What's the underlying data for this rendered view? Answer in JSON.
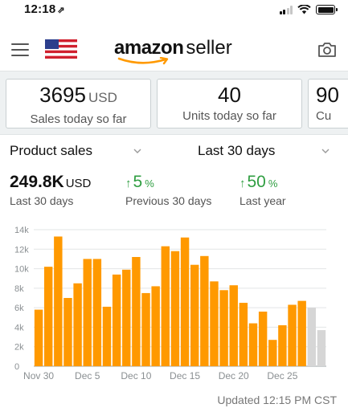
{
  "status_bar": {
    "time": "12:18",
    "location_glyph": "⇗"
  },
  "header": {
    "logo_word1": "amazon",
    "logo_word2": "seller",
    "flag": "us-flag-icon"
  },
  "cards": [
    {
      "value": "3695",
      "unit": "USD",
      "label": "Sales today so far"
    },
    {
      "value": "40",
      "unit": "",
      "label": "Units today so far"
    },
    {
      "value": "90",
      "unit": "",
      "label": "Cu"
    }
  ],
  "filters": {
    "metric": "Product sales",
    "range": "Last 30 days"
  },
  "stats": {
    "total": {
      "value": "249.8K",
      "unit": "USD",
      "label": "Last 30 days"
    },
    "previous": {
      "value": "5",
      "unit": "%",
      "label": "Previous 30 days"
    },
    "last_year": {
      "value": "50",
      "unit": "%",
      "label": "Last year"
    }
  },
  "colors": {
    "bar": "#ff9900",
    "bar_pending": "#d6d6d6",
    "positive": "#2f9e41",
    "card_bg": "#eef1f2"
  },
  "chart_data": {
    "type": "bar",
    "ylim": [
      0,
      14000
    ],
    "yticks": [
      "0",
      "2k",
      "4k",
      "6k",
      "8k",
      "10k",
      "12k",
      "14k"
    ],
    "xticks": [
      {
        "label": "Nov 30",
        "index": 0
      },
      {
        "label": "Dec 5",
        "index": 5
      },
      {
        "label": "Dec 10",
        "index": 10
      },
      {
        "label": "Dec 15",
        "index": 15
      },
      {
        "label": "Dec 20",
        "index": 20
      },
      {
        "label": "Dec 25",
        "index": 25
      }
    ],
    "categories": [
      "Nov 30",
      "Dec 1",
      "Dec 2",
      "Dec 3",
      "Dec 4",
      "Dec 5",
      "Dec 6",
      "Dec 7",
      "Dec 8",
      "Dec 9",
      "Dec 10",
      "Dec 11",
      "Dec 12",
      "Dec 13",
      "Dec 14",
      "Dec 15",
      "Dec 16",
      "Dec 17",
      "Dec 18",
      "Dec 19",
      "Dec 20",
      "Dec 21",
      "Dec 22",
      "Dec 23",
      "Dec 24",
      "Dec 25",
      "Dec 26",
      "Dec 27",
      "Dec 28",
      "Dec 29"
    ],
    "values": [
      5800,
      10200,
      13300,
      7000,
      8500,
      11000,
      11000,
      6100,
      9400,
      9900,
      11200,
      7500,
      8200,
      12300,
      11800,
      13200,
      10400,
      11300,
      8700,
      7800,
      8300,
      6500,
      4400,
      5600,
      2700,
      4200,
      6300,
      6700,
      6000,
      3700
    ],
    "pending": [
      false,
      false,
      false,
      false,
      false,
      false,
      false,
      false,
      false,
      false,
      false,
      false,
      false,
      false,
      false,
      false,
      false,
      false,
      false,
      false,
      false,
      false,
      false,
      false,
      false,
      false,
      false,
      false,
      true,
      true
    ],
    "grid": true,
    "updated_text": "Updated 12:15 PM CST"
  }
}
